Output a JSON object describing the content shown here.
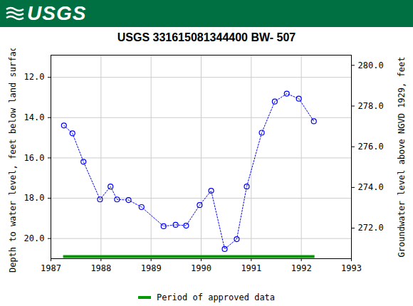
{
  "header": {
    "logo": "USGS"
  },
  "chart_data": {
    "type": "line",
    "title": "USGS 331615081344400 BW- 507",
    "x_label": "",
    "y_label": "Depth to water level, feet below land surface",
    "y2_label": "Groundwater level above NGVD 1929, feet",
    "x": [
      1987.26,
      1987.43,
      1987.65,
      1987.98,
      1988.19,
      1988.32,
      1988.55,
      1988.81,
      1989.25,
      1989.49,
      1989.7,
      1989.97,
      1990.2,
      1990.47,
      1990.71,
      1990.91,
      1991.21,
      1991.47,
      1991.71,
      1991.95,
      1992.25
    ],
    "series": [
      {
        "color": "#0000ff",
        "marker": "circle",
        "line_style": "dotted",
        "values": [
          14.39,
          14.78,
          16.19,
          18.06,
          17.42,
          18.06,
          18.09,
          18.44,
          19.39,
          19.32,
          19.36,
          18.34,
          17.63,
          20.52,
          20.03,
          17.42,
          14.75,
          13.2,
          12.81,
          13.06,
          14.18
        ]
      }
    ],
    "xlim": [
      1987,
      1993
    ],
    "xticks": [
      1987,
      1988,
      1989,
      1990,
      1991,
      1992,
      1993
    ],
    "ylim": [
      10.9,
      21.0
    ],
    "yticks": [
      {
        "value": 12,
        "label": "12.0"
      },
      {
        "value": 14,
        "label": "14.0"
      },
      {
        "value": 16,
        "label": "16.0"
      },
      {
        "value": 18,
        "label": "18.0"
      },
      {
        "value": 20,
        "label": "20.0"
      }
    ],
    "y2lim": [
      270.5,
      280.5
    ],
    "y2ticks": [
      {
        "value": 272,
        "label": "272.0"
      },
      {
        "value": 274,
        "label": "274.0"
      },
      {
        "value": 276,
        "label": "276.0"
      },
      {
        "value": 278,
        "label": "278.0"
      },
      {
        "value": 280,
        "label": "280.0"
      }
    ],
    "grid": true,
    "legend": "bottom",
    "approved_period": {
      "name": "Period of approved data",
      "color": "#009900",
      "x": [
        1987.25,
        1992.27
      ]
    }
  }
}
